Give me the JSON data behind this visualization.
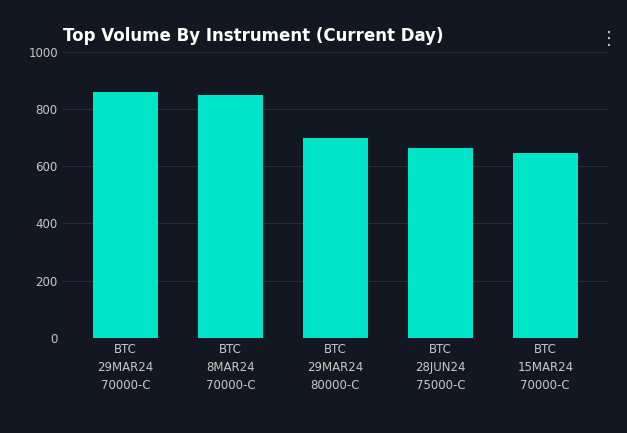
{
  "title": "Top Volume By Instrument (Current Day)",
  "categories": [
    "BTC\n29MAR24\n70000-C",
    "BTC\n8MAR24\n70000-C",
    "BTC\n29MAR24\n80000-C",
    "BTC\n28JUN24\n75000-C",
    "BTC\n15MAR24\n70000-C"
  ],
  "values": [
    860,
    848,
    700,
    665,
    645
  ],
  "bar_color": "#00E5C8",
  "background_color": "#131722",
  "text_color": "#C8C8C8",
  "grid_color": "#2A2E39",
  "title_fontsize": 12,
  "tick_fontsize": 8.5,
  "ylim": [
    0,
    1000
  ],
  "yticks": [
    0,
    200,
    400,
    600,
    800,
    1000
  ],
  "bar_width": 0.62
}
